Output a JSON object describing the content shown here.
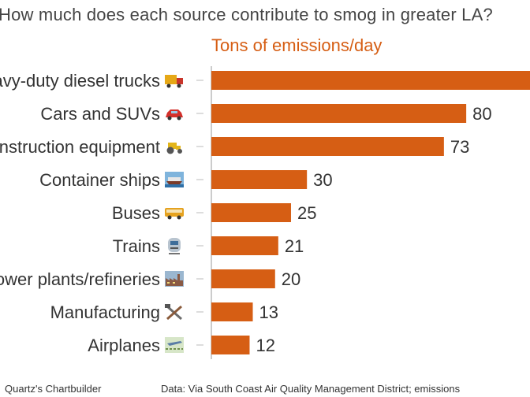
{
  "chart_data": {
    "type": "bar",
    "orientation": "horizontal",
    "title": "How much does each source contribute to smog in greater LA?",
    "subtitle": "Tons of emissions/day",
    "categories": [
      "Heavy-duty diesel trucks",
      "Cars and SUVs",
      "Construction equipment",
      "Container ships",
      "Buses",
      "Trains",
      "Power plants/refineries",
      "Manufacturing",
      "Airplanes"
    ],
    "icons": [
      "truck-icon",
      "car-icon",
      "tractor-icon",
      "ship-icon",
      "bus-icon",
      "train-icon",
      "factory-icon",
      "tools-icon",
      "airplane-icon"
    ],
    "values": [
      null,
      80,
      73,
      30,
      25,
      21,
      20,
      13,
      12
    ],
    "value_labels": [
      "",
      "80",
      "73",
      "30",
      "25",
      "21",
      "20",
      "13",
      "12"
    ],
    "bar_color": "#d65e14",
    "xlim": [
      0,
      102
    ],
    "grid": false
  },
  "footer": {
    "credit": "Quartz's Chartbuilder",
    "source": "Data: Via South Coast Air Quality Management District; emissions"
  }
}
